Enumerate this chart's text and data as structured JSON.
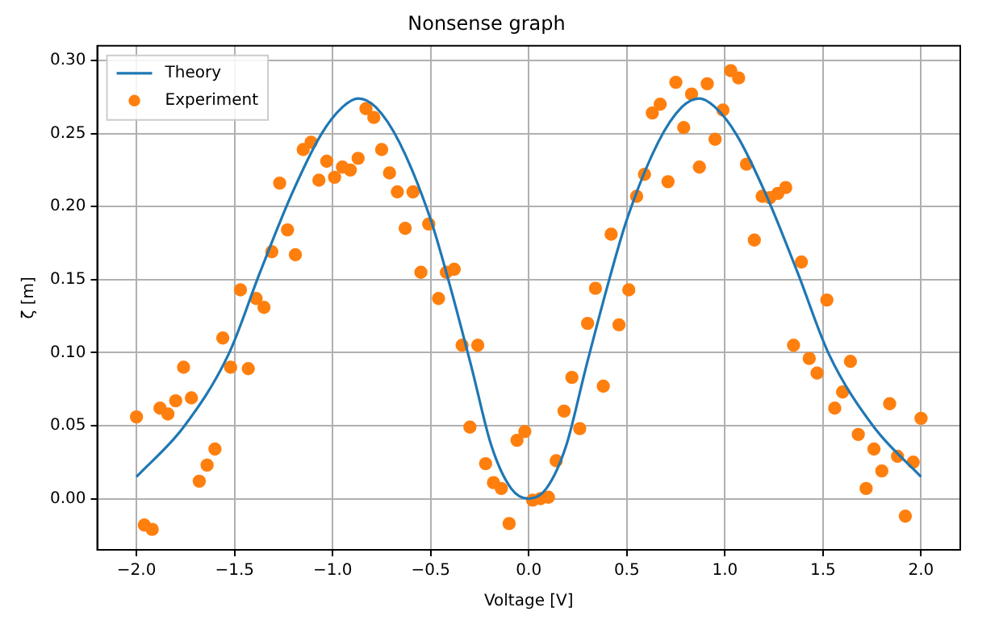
{
  "chart_data": {
    "type": "scatter",
    "title": "Nonsense graph",
    "xlabel": "Voltage [V]",
    "ylabel": "ζ [m]",
    "xlim": [
      -2.2,
      2.2
    ],
    "xticks": [
      {
        "value": -2,
        "label": "−2.0"
      },
      {
        "value": -1.5,
        "label": "−1.5"
      },
      {
        "value": -1,
        "label": "−1.0"
      },
      {
        "value": -0.5,
        "label": "−0.5"
      },
      {
        "value": 0,
        "label": "0.0"
      },
      {
        "value": 0.5,
        "label": "0.5"
      },
      {
        "value": 1,
        "label": "1.0"
      },
      {
        "value": 1.5,
        "label": "1.5"
      },
      {
        "value": 2,
        "label": "2.0"
      }
    ],
    "ylim": [
      -0.035,
      0.31
    ],
    "yticks": [
      {
        "value": 0,
        "label": "0.00"
      },
      {
        "value": 0.05,
        "label": "0.05"
      },
      {
        "value": 0.1,
        "label": "0.10"
      },
      {
        "value": 0.15,
        "label": "0.15"
      },
      {
        "value": 0.2,
        "label": "0.20"
      },
      {
        "value": 0.25,
        "label": "0.25"
      },
      {
        "value": 0.3,
        "label": "0.30"
      }
    ],
    "grid": true,
    "legend": "top left",
    "series": [
      {
        "name": "Theory",
        "type": "line",
        "color": "#1f77b4",
        "line_style": "solid",
        "marker": "none",
        "x": [
          -2,
          -1.76,
          -1.53,
          -1.37,
          -1.21,
          -1.06,
          -0.95,
          -0.87,
          -0.78,
          -0.66,
          -0.5,
          -0.4,
          -0.29,
          -0.19,
          -0.09,
          0,
          0.09,
          0.19,
          0.29,
          0.4,
          0.5,
          0.66,
          0.78,
          0.87,
          0.95,
          1.06,
          1.21,
          1.37,
          1.53,
          1.76,
          2
        ],
        "values": [
          0.015,
          0.049,
          0.099,
          0.155,
          0.208,
          0.249,
          0.268,
          0.274,
          0.268,
          0.244,
          0.191,
          0.145,
          0.089,
          0.036,
          0.007,
          0.0,
          0.007,
          0.036,
          0.089,
          0.145,
          0.191,
          0.244,
          0.268,
          0.274,
          0.268,
          0.249,
          0.208,
          0.155,
          0.099,
          0.049,
          0.015
        ]
      },
      {
        "name": "Experiment",
        "type": "scatter",
        "color": "#ff7f0e",
        "marker": "circle",
        "x": [
          -2.0,
          -1.96,
          -1.92,
          -1.88,
          -1.84,
          -1.8,
          -1.76,
          -1.72,
          -1.68,
          -1.64,
          -1.6,
          -1.56,
          -1.52,
          -1.47,
          -1.43,
          -1.39,
          -1.35,
          -1.31,
          -1.27,
          -1.23,
          -1.19,
          -1.15,
          -1.11,
          -1.07,
          -1.03,
          -0.99,
          -0.95,
          -0.91,
          -0.87,
          -0.83,
          -0.79,
          -0.75,
          -0.71,
          -0.67,
          -0.63,
          -0.59,
          -0.55,
          -0.51,
          -0.46,
          -0.42,
          -0.38,
          -0.34,
          -0.3,
          -0.26,
          -0.22,
          -0.18,
          -0.14,
          -0.1,
          -0.06,
          -0.02,
          0.02,
          0.06,
          0.1,
          0.14,
          0.18,
          0.22,
          0.26,
          0.3,
          0.34,
          0.38,
          0.42,
          0.46,
          0.51,
          0.55,
          0.59,
          0.63,
          0.67,
          0.71,
          0.75,
          0.79,
          0.83,
          0.87,
          0.91,
          0.95,
          0.99,
          1.03,
          1.07,
          1.11,
          1.15,
          1.19,
          1.23,
          1.27,
          1.31,
          1.35,
          1.39,
          1.43,
          1.47,
          1.52,
          1.56,
          1.6,
          1.64,
          1.68,
          1.72,
          1.76,
          1.8,
          1.84,
          1.88,
          1.92,
          1.96,
          2.0
        ],
        "values": [
          0.056,
          -0.018,
          -0.021,
          0.062,
          0.058,
          0.067,
          0.09,
          0.069,
          0.012,
          0.023,
          0.034,
          0.11,
          0.09,
          0.143,
          0.089,
          0.137,
          0.131,
          0.169,
          0.216,
          0.184,
          0.167,
          0.239,
          0.244,
          0.218,
          0.231,
          0.22,
          0.227,
          0.225,
          0.233,
          0.267,
          0.261,
          0.239,
          0.223,
          0.21,
          0.185,
          0.21,
          0.155,
          0.188,
          0.137,
          0.155,
          0.157,
          0.105,
          0.049,
          0.105,
          0.024,
          0.011,
          0.007,
          -0.017,
          0.04,
          0.046,
          -0.001,
          0.0,
          0.001,
          0.026,
          0.06,
          0.083,
          0.048,
          0.12,
          0.144,
          0.077,
          0.181,
          0.119,
          0.143,
          0.207,
          0.222,
          0.264,
          0.27,
          0.217,
          0.285,
          0.254,
          0.277,
          0.227,
          0.284,
          0.246,
          0.266,
          0.293,
          0.288,
          0.229,
          0.177,
          0.207,
          0.206,
          0.209,
          0.213,
          0.105,
          0.162,
          0.096,
          0.086,
          0.136,
          0.062,
          0.073,
          0.094,
          0.044,
          0.007,
          0.034,
          0.019,
          0.065,
          0.029,
          -0.012,
          0.025,
          0.055
        ]
      }
    ]
  }
}
